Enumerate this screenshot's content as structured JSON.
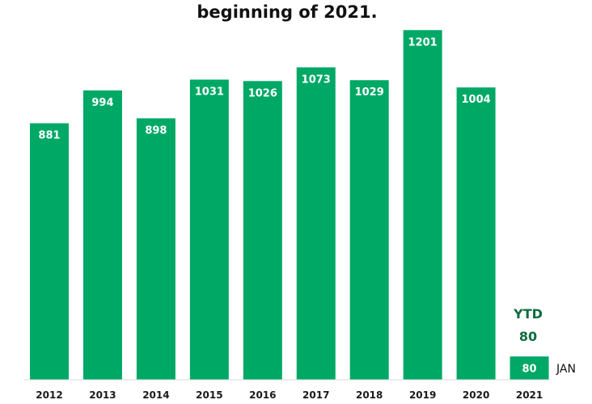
{
  "chart_data": {
    "type": "bar",
    "title": "beginning of 2021.",
    "categories": [
      "2012",
      "2013",
      "2014",
      "2015",
      "2016",
      "2017",
      "2018",
      "2019",
      "2020",
      "2021"
    ],
    "values": [
      881,
      994,
      898,
      1031,
      1026,
      1073,
      1029,
      1201,
      1004,
      80
    ],
    "data_labels": [
      "881",
      "994",
      "898",
      "1031",
      "1026",
      "1073",
      "1029",
      "1201",
      "1004",
      "80"
    ],
    "ylim": [
      0,
      1260
    ],
    "grid": false,
    "bar_color": "#00a866",
    "annotations": {
      "ytd_label": "YTD",
      "ytd_value": "80",
      "month_label": "JAN",
      "ytd_color": "#0e6b3f"
    }
  }
}
